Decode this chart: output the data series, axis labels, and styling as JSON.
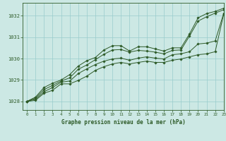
{
  "title": "Graphe pression niveau de la mer (hPa)",
  "background_color": "#cce8e4",
  "grid_color": "#99cccc",
  "line_color": "#2d5a27",
  "xlim": [
    -0.5,
    23
  ],
  "ylim": [
    1027.6,
    1032.6
  ],
  "yticks": [
    1028,
    1029,
    1030,
    1031,
    1032
  ],
  "xticks": [
    0,
    1,
    2,
    3,
    4,
    5,
    6,
    7,
    8,
    9,
    10,
    11,
    12,
    13,
    14,
    15,
    16,
    17,
    18,
    19,
    20,
    21,
    22,
    23
  ],
  "series": [
    [
      1028.0,
      1028.2,
      1028.65,
      1028.85,
      1029.0,
      1029.25,
      1029.65,
      1029.9,
      1030.05,
      1030.4,
      1030.6,
      1030.6,
      1030.35,
      1030.55,
      1030.55,
      1030.45,
      1030.35,
      1030.5,
      1030.5,
      1031.15,
      1031.9,
      1032.1,
      1032.2,
      1032.35
    ],
    [
      1028.0,
      1028.15,
      1028.55,
      1028.75,
      1028.95,
      1029.1,
      1029.5,
      1029.7,
      1029.95,
      1030.2,
      1030.4,
      1030.42,
      1030.3,
      1030.38,
      1030.35,
      1030.3,
      1030.22,
      1030.38,
      1030.4,
      1031.05,
      1031.75,
      1031.95,
      1032.12,
      1032.28
    ],
    [
      1028.0,
      1028.1,
      1028.45,
      1028.65,
      1028.9,
      1028.95,
      1029.3,
      1029.52,
      1029.72,
      1029.88,
      1029.98,
      1030.02,
      1029.92,
      1030.02,
      1030.08,
      1030.02,
      1029.98,
      1030.18,
      1030.22,
      1030.32,
      1030.68,
      1030.72,
      1030.82,
      1032.12
    ],
    [
      1028.0,
      1028.05,
      1028.38,
      1028.52,
      1028.82,
      1028.82,
      1028.98,
      1029.18,
      1029.45,
      1029.62,
      1029.75,
      1029.82,
      1029.75,
      1029.82,
      1029.88,
      1029.82,
      1029.82,
      1029.92,
      1029.98,
      1030.08,
      1030.18,
      1030.22,
      1030.32,
      1032.08
    ]
  ]
}
